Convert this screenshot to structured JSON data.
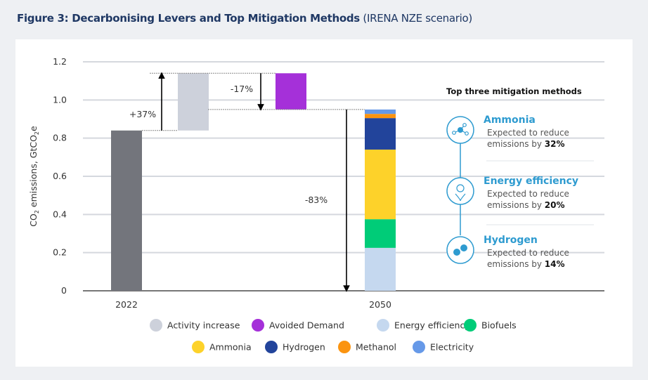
{
  "title": {
    "bold": "Figure 3: Decarbonising Levers and Top Mitigation Methods",
    "normal": "(IRENA NZE scenario)"
  },
  "chart_data": {
    "type": "bar",
    "subtype": "waterfall-stacked",
    "ylabel": "CO2 emissions, GtCO2e",
    "ylim": [
      0,
      1.2
    ],
    "yticks": [
      "0",
      "0.2",
      "0.4",
      "0.6",
      "0.8",
      "1.0",
      "1.2"
    ],
    "grid": true,
    "categories": [
      "2022",
      "2050"
    ],
    "bars": [
      {
        "name": "2022",
        "label": "2022",
        "base": 0,
        "top": 0.84,
        "color": "#73757c"
      },
      {
        "name": "Activity increase",
        "base": 0.84,
        "top": 1.14,
        "color": "#cdd1db"
      },
      {
        "name": "Avoided Demand",
        "base": 0.95,
        "top": 1.14,
        "color": "#a530d9"
      }
    ],
    "stack_2050": [
      {
        "name": "Energy efficiency",
        "value": 0.225,
        "color": "#c5d8ef"
      },
      {
        "name": "Biofuels",
        "value": 0.15,
        "color": "#00cc78"
      },
      {
        "name": "Ammonia",
        "value": 0.365,
        "color": "#fdd22a"
      },
      {
        "name": "Hydrogen",
        "value": 0.165,
        "color": "#22449b"
      },
      {
        "name": "Methanol",
        "value": 0.022,
        "color": "#fb9410"
      },
      {
        "name": "Electricity",
        "value": 0.023,
        "color": "#6699e8"
      }
    ],
    "annotations": [
      "+37%",
      "-17%",
      "-83%"
    ],
    "legend": {
      "placement": "bottom",
      "entries": [
        {
          "name": "Activity increase",
          "color": "#cdd1db"
        },
        {
          "name": "Avoided Demand",
          "color": "#a530d9"
        },
        {
          "name": "Energy efficiency",
          "color": "#c5d8ef"
        },
        {
          "name": "Biofuels",
          "color": "#00cc78"
        },
        {
          "name": "Ammonia",
          "color": "#fdd22a"
        },
        {
          "name": "Hydrogen",
          "color": "#22449b"
        },
        {
          "name": "Methanol",
          "color": "#fb9410"
        },
        {
          "name": "Electricity",
          "color": "#6699e8"
        }
      ]
    }
  },
  "panel": {
    "title": "Top three mitigation methods",
    "line": "Expected to reduce",
    "prefix": "emissions by",
    "items": [
      {
        "name": "Ammonia",
        "value": "32%",
        "icon": "molecule-icon"
      },
      {
        "name": "Energy efficiency",
        "value": "20%",
        "icon": "lightbulb-leaf-icon"
      },
      {
        "name": "Hydrogen",
        "value": "14%",
        "icon": "hydrogen-icon"
      }
    ],
    "accent": "#2e9bd0"
  }
}
